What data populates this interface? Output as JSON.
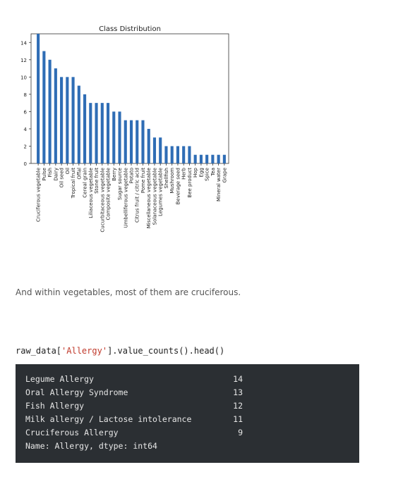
{
  "chart_data": {
    "type": "bar",
    "title": "Class Distribution",
    "xlabel": "",
    "ylabel": "",
    "ylim": [
      0,
      15
    ],
    "yticks": [
      0,
      2,
      4,
      6,
      8,
      10,
      12,
      14
    ],
    "bar_color": "#2f6db5",
    "categories": [
      "Cruciferous vegetable",
      "Pulse",
      "Fish",
      "Dairy",
      "Oil seed",
      "Oil",
      "Tropical fruit",
      "Offal",
      "Cereal grain",
      "Liliaceous vegetable",
      "Stone fruit",
      "Cucurbitaceous vegetable",
      "Composite vegetable",
      "Berry",
      "Sugar source",
      "Umbelliferous vegetable",
      "Potato",
      "Citrus fruit / citric acid",
      "Pome fruit",
      "Miscellaneous vegetable",
      "Solanaceous vegetable",
      "Legumes vegetable",
      "Shellfish",
      "Mushroom",
      "Beverage seed",
      "Herb",
      "Bee product",
      "Hop",
      "Egg",
      "Spice",
      "Tea",
      "Mineral water",
      "Grape"
    ],
    "values": [
      15,
      13,
      12,
      11,
      10,
      10,
      10,
      9,
      8,
      7,
      7,
      7,
      7,
      6,
      6,
      5,
      5,
      5,
      5,
      4,
      3,
      3,
      2,
      2,
      2,
      2,
      2,
      1,
      1,
      1,
      1,
      1,
      1
    ]
  },
  "prose": {
    "text": "And within vegetables, most of them are cruciferous."
  },
  "code": {
    "prefix": "raw_data[",
    "arg": "'Allergy'",
    "suffix": "].value_counts().head()"
  },
  "output": {
    "rows": [
      {
        "label": "Legume Allergy",
        "value": "14"
      },
      {
        "label": "Oral Allergy Syndrome",
        "value": "13"
      },
      {
        "label": "Fish Allergy",
        "value": "12"
      },
      {
        "label": "Milk allergy / Lactose intolerance",
        "value": "11"
      },
      {
        "label": "Cruciferous Allergy",
        "value": "9"
      }
    ],
    "footer": "Name: Allergy, dtype: int64"
  }
}
